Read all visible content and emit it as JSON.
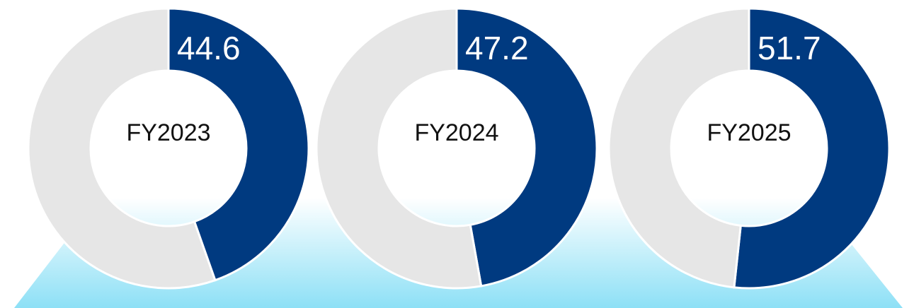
{
  "chart_data": [
    {
      "type": "donut",
      "title": "FY2023",
      "values": [
        44.6,
        55.4
      ],
      "colors": [
        "#003a80",
        "#e6e6e6"
      ]
    },
    {
      "type": "donut",
      "title": "FY2024",
      "values": [
        47.2,
        52.8
      ],
      "colors": [
        "#003a80",
        "#e6e6e6"
      ]
    },
    {
      "type": "donut",
      "title": "FY2025",
      "values": [
        51.7,
        48.3
      ],
      "colors": [
        "#003a80",
        "#e6e6e6"
      ]
    }
  ]
}
